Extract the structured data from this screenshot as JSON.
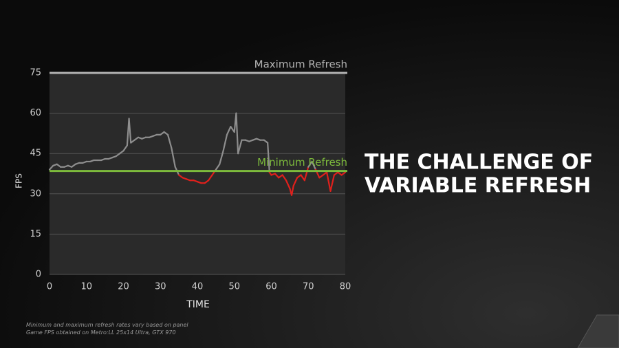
{
  "chart_data": {
    "type": "line",
    "x_label": "TIME",
    "y_label": "FPS",
    "xlim": [
      0,
      80
    ],
    "xticks": [
      0,
      10,
      20,
      30,
      40,
      50,
      60,
      70,
      80
    ],
    "ylim": [
      0,
      75
    ],
    "yticks": [
      0,
      15,
      30,
      45,
      60,
      75
    ],
    "grid": true,
    "reference_lines": [
      {
        "label": "Maximum Refresh",
        "value": 75,
        "color": "#b4b4b4"
      },
      {
        "label": "Minimum Refresh",
        "value": 38.5,
        "color": "#7dbb3c"
      }
    ],
    "below_min_color": "#e0201c",
    "series": [
      {
        "name": "Game FPS",
        "color": "#8e8e8e",
        "x": [
          0,
          1,
          2,
          3,
          4,
          5,
          6,
          7,
          8,
          9,
          10,
          11,
          12,
          13,
          14,
          15,
          16,
          17,
          18,
          19,
          20,
          21,
          21.5,
          22,
          23,
          24,
          25,
          26,
          27,
          28,
          29,
          30,
          31,
          32,
          33,
          34,
          35,
          36,
          37,
          38,
          39,
          40,
          41,
          42,
          43,
          44,
          45,
          46,
          47,
          48,
          49,
          50,
          50.5,
          51,
          52,
          53,
          54,
          55,
          56,
          57,
          58,
          59,
          59.5,
          60,
          61,
          62,
          63,
          64,
          65,
          65.5,
          66,
          67,
          68,
          69,
          70,
          71,
          72,
          73,
          74,
          75,
          76,
          77,
          78,
          79,
          80
        ],
        "values": [
          39,
          40.5,
          41,
          40,
          40,
          40.5,
          40,
          41,
          41.5,
          41.5,
          42,
          42,
          42.5,
          42.5,
          42.5,
          43,
          43,
          43.5,
          44,
          45,
          46,
          48,
          58,
          49,
          50,
          51,
          50.5,
          51,
          51,
          51.5,
          52,
          52,
          53,
          52,
          47,
          40,
          37,
          36,
          35.5,
          35,
          35,
          34.5,
          34,
          34,
          35,
          37,
          39,
          41,
          46,
          52,
          55,
          53,
          60,
          45,
          50,
          50,
          49.5,
          50,
          50.5,
          50,
          50,
          49,
          38,
          37,
          37.5,
          36,
          37,
          35,
          32,
          29.5,
          33,
          36,
          37,
          35,
          40,
          42,
          39,
          36,
          37,
          38,
          31,
          37,
          38,
          37,
          38
        ]
      }
    ]
  },
  "headline": [
    "THE CHALLENGE OF",
    "VARIABLE REFRESH"
  ],
  "footnotes": [
    "Minimum and maximum refresh rates vary based on panel",
    "Game FPS obtained on Metro:LL 25x14 Ultra, GTX 970"
  ]
}
